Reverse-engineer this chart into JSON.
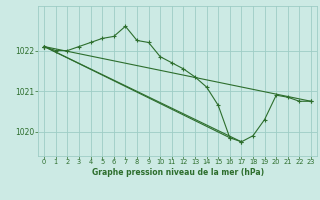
{
  "background_color": "#cceae4",
  "line_color": "#2d6e2d",
  "grid_color": "#9ecdc5",
  "title": "Graphe pression niveau de la mer (hPa)",
  "xlim": [
    -0.5,
    23.5
  ],
  "ylim": [
    1019.4,
    1023.1
  ],
  "yticks": [
    1020,
    1021,
    1022
  ],
  "xticks": [
    0,
    1,
    2,
    3,
    4,
    5,
    6,
    7,
    8,
    9,
    10,
    11,
    12,
    13,
    14,
    15,
    16,
    17,
    18,
    19,
    20,
    21,
    22,
    23
  ],
  "lines": [
    {
      "x": [
        0,
        1,
        2,
        3,
        4,
        5,
        6,
        7,
        8,
        9,
        10,
        11,
        12,
        13,
        14,
        15,
        16,
        17,
        18,
        19,
        20,
        21,
        22,
        23
      ],
      "y": [
        1022.1,
        1022.0,
        1022.0,
        1022.1,
        1022.2,
        1022.3,
        1022.35,
        1022.6,
        1022.25,
        1022.2,
        1021.85,
        1021.7,
        1021.55,
        1021.35,
        1021.1,
        1020.65,
        1019.85,
        1019.75,
        1019.9,
        1020.3,
        1020.9,
        1020.85,
        1020.75,
        1020.75
      ]
    },
    {
      "x": [
        0,
        23
      ],
      "y": [
        1022.1,
        1020.75
      ]
    },
    {
      "x": [
        0,
        16
      ],
      "y": [
        1022.1,
        1019.85
      ]
    },
    {
      "x": [
        0,
        17
      ],
      "y": [
        1022.1,
        1019.75
      ]
    }
  ]
}
